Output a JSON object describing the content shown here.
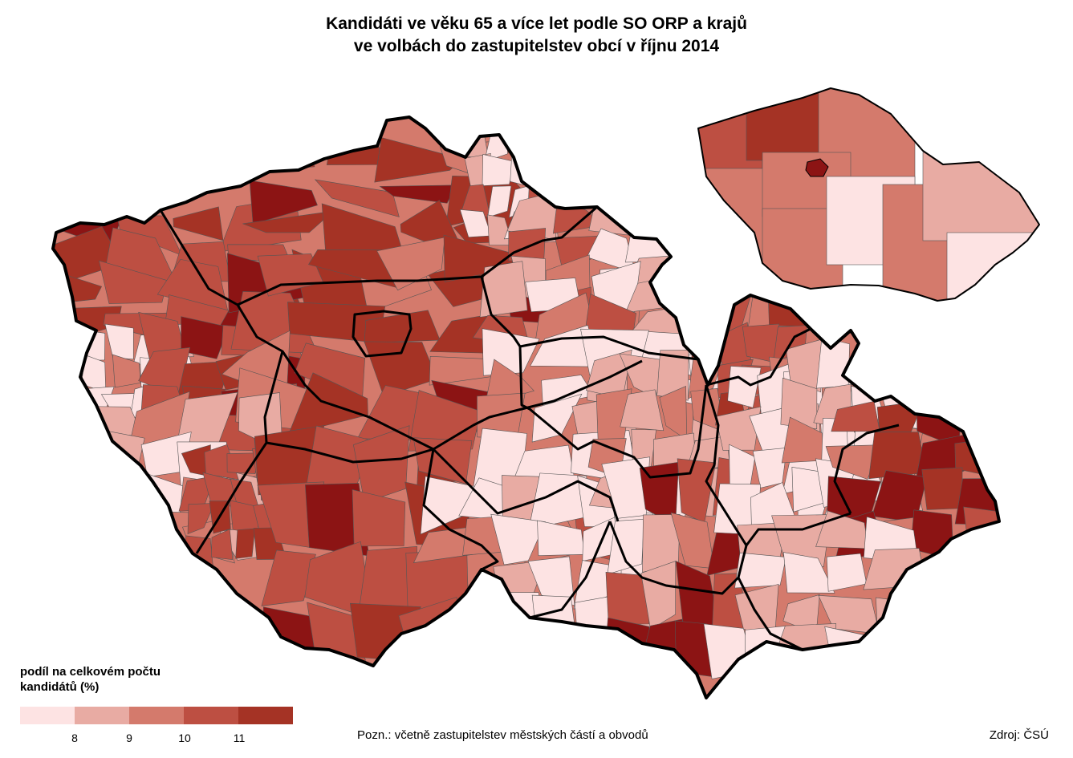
{
  "title": {
    "line1": "Kandidáti ve věku 65 a více let podle SO ORP a krajů",
    "line2": "ve volbách do zastupitelstev obcí v říjnu 2014"
  },
  "legend": {
    "title_line1": "podíl na celkovém počtu",
    "title_line2": "kandidátů (%)",
    "classes": [
      "#fde3e3",
      "#e8aba3",
      "#d47a6c",
      "#bd4f42",
      "#a53325"
    ],
    "ticks": [
      "8",
      "9",
      "10",
      "11"
    ]
  },
  "colors": {
    "darkest": "#8c1414",
    "border": "#000000"
  },
  "note": "Pozn.:  včetně zastupitelstev městských částí a obvodů",
  "source": "Zdroj: ČSÚ"
}
